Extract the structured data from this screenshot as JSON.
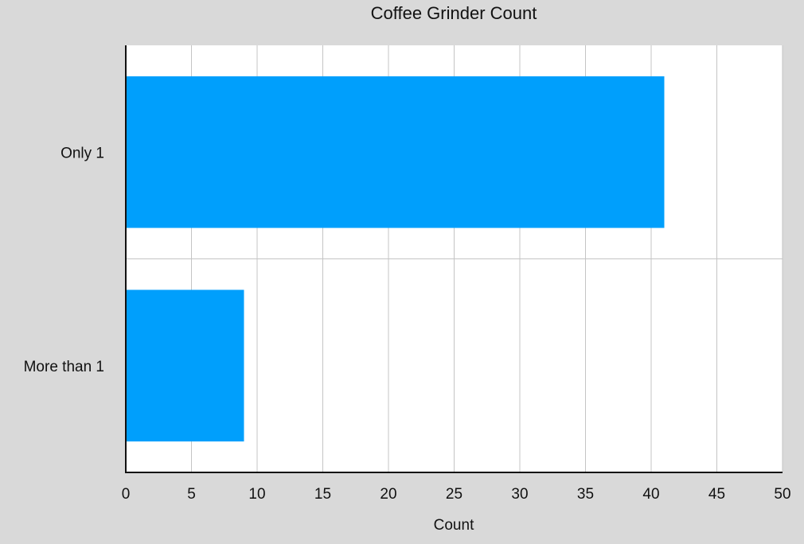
{
  "chart_data": {
    "type": "bar",
    "orientation": "horizontal",
    "title": "Coffee Grinder Count",
    "xlabel": "Count",
    "ylabel": "",
    "categories": [
      "Only 1",
      "More than 1"
    ],
    "values": [
      41,
      9
    ],
    "xlim": [
      0,
      50
    ],
    "x_ticks": [
      "0",
      "5",
      "10",
      "15",
      "20",
      "25",
      "30",
      "35",
      "40",
      "45",
      "50"
    ],
    "grid": true,
    "legend": "none",
    "bar_color": "#009ffc",
    "plot_background": "#ffffff",
    "page_background": "#d9d9d9",
    "grid_color": "#c4c4c4"
  }
}
